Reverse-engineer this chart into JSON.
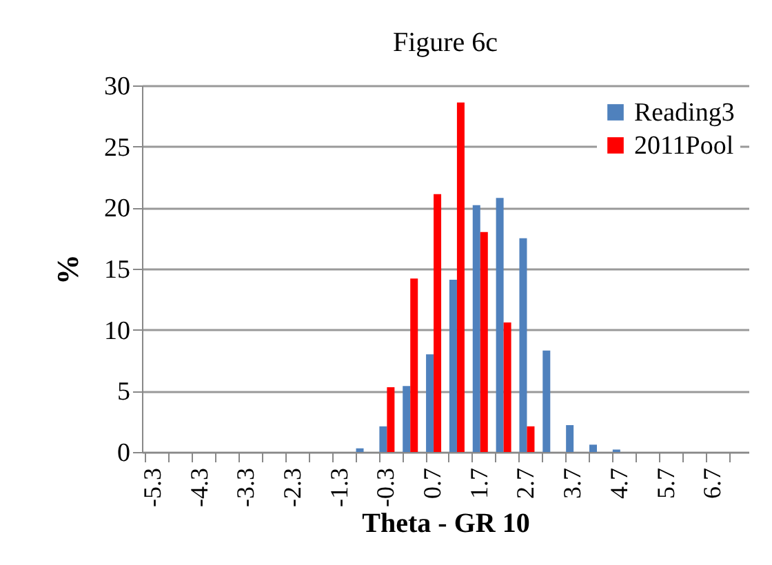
{
  "chart_data": {
    "type": "bar",
    "title": "Figure 6c",
    "xlabel": "Theta - GR 10",
    "ylabel": "%",
    "categories": [
      "-5.3",
      null,
      "-4.3",
      null,
      "-3.3",
      null,
      "-2.3",
      null,
      "-1.3",
      null,
      "-0.3",
      null,
      "0.7",
      null,
      "1.7",
      null,
      "2.7",
      null,
      "3.7",
      null,
      "4.7",
      null,
      "5.7",
      null,
      "6.7",
      null
    ],
    "series": [
      {
        "name": "Reading3",
        "color": "#4f81bd",
        "values": [
          0,
          0,
          0,
          0,
          0,
          0,
          0,
          0,
          0,
          0.3,
          2.1,
          5.4,
          8.0,
          14.1,
          20.2,
          20.8,
          17.5,
          8.3,
          2.2,
          0.6,
          0.2,
          0,
          0,
          0,
          0,
          0
        ]
      },
      {
        "name": "2011Pool",
        "color": "#ff0000",
        "values": [
          0,
          0,
          0,
          0,
          0,
          0,
          0,
          0,
          0,
          0,
          5.3,
          14.2,
          21.1,
          28.6,
          18.0,
          10.6,
          2.1,
          0,
          0,
          0,
          0,
          0,
          0,
          0,
          0,
          0
        ]
      }
    ],
    "ylim": [
      0,
      30
    ],
    "yticks": [
      0,
      5,
      10,
      15,
      20,
      25,
      30
    ],
    "grid": "y",
    "legend": "top right"
  }
}
